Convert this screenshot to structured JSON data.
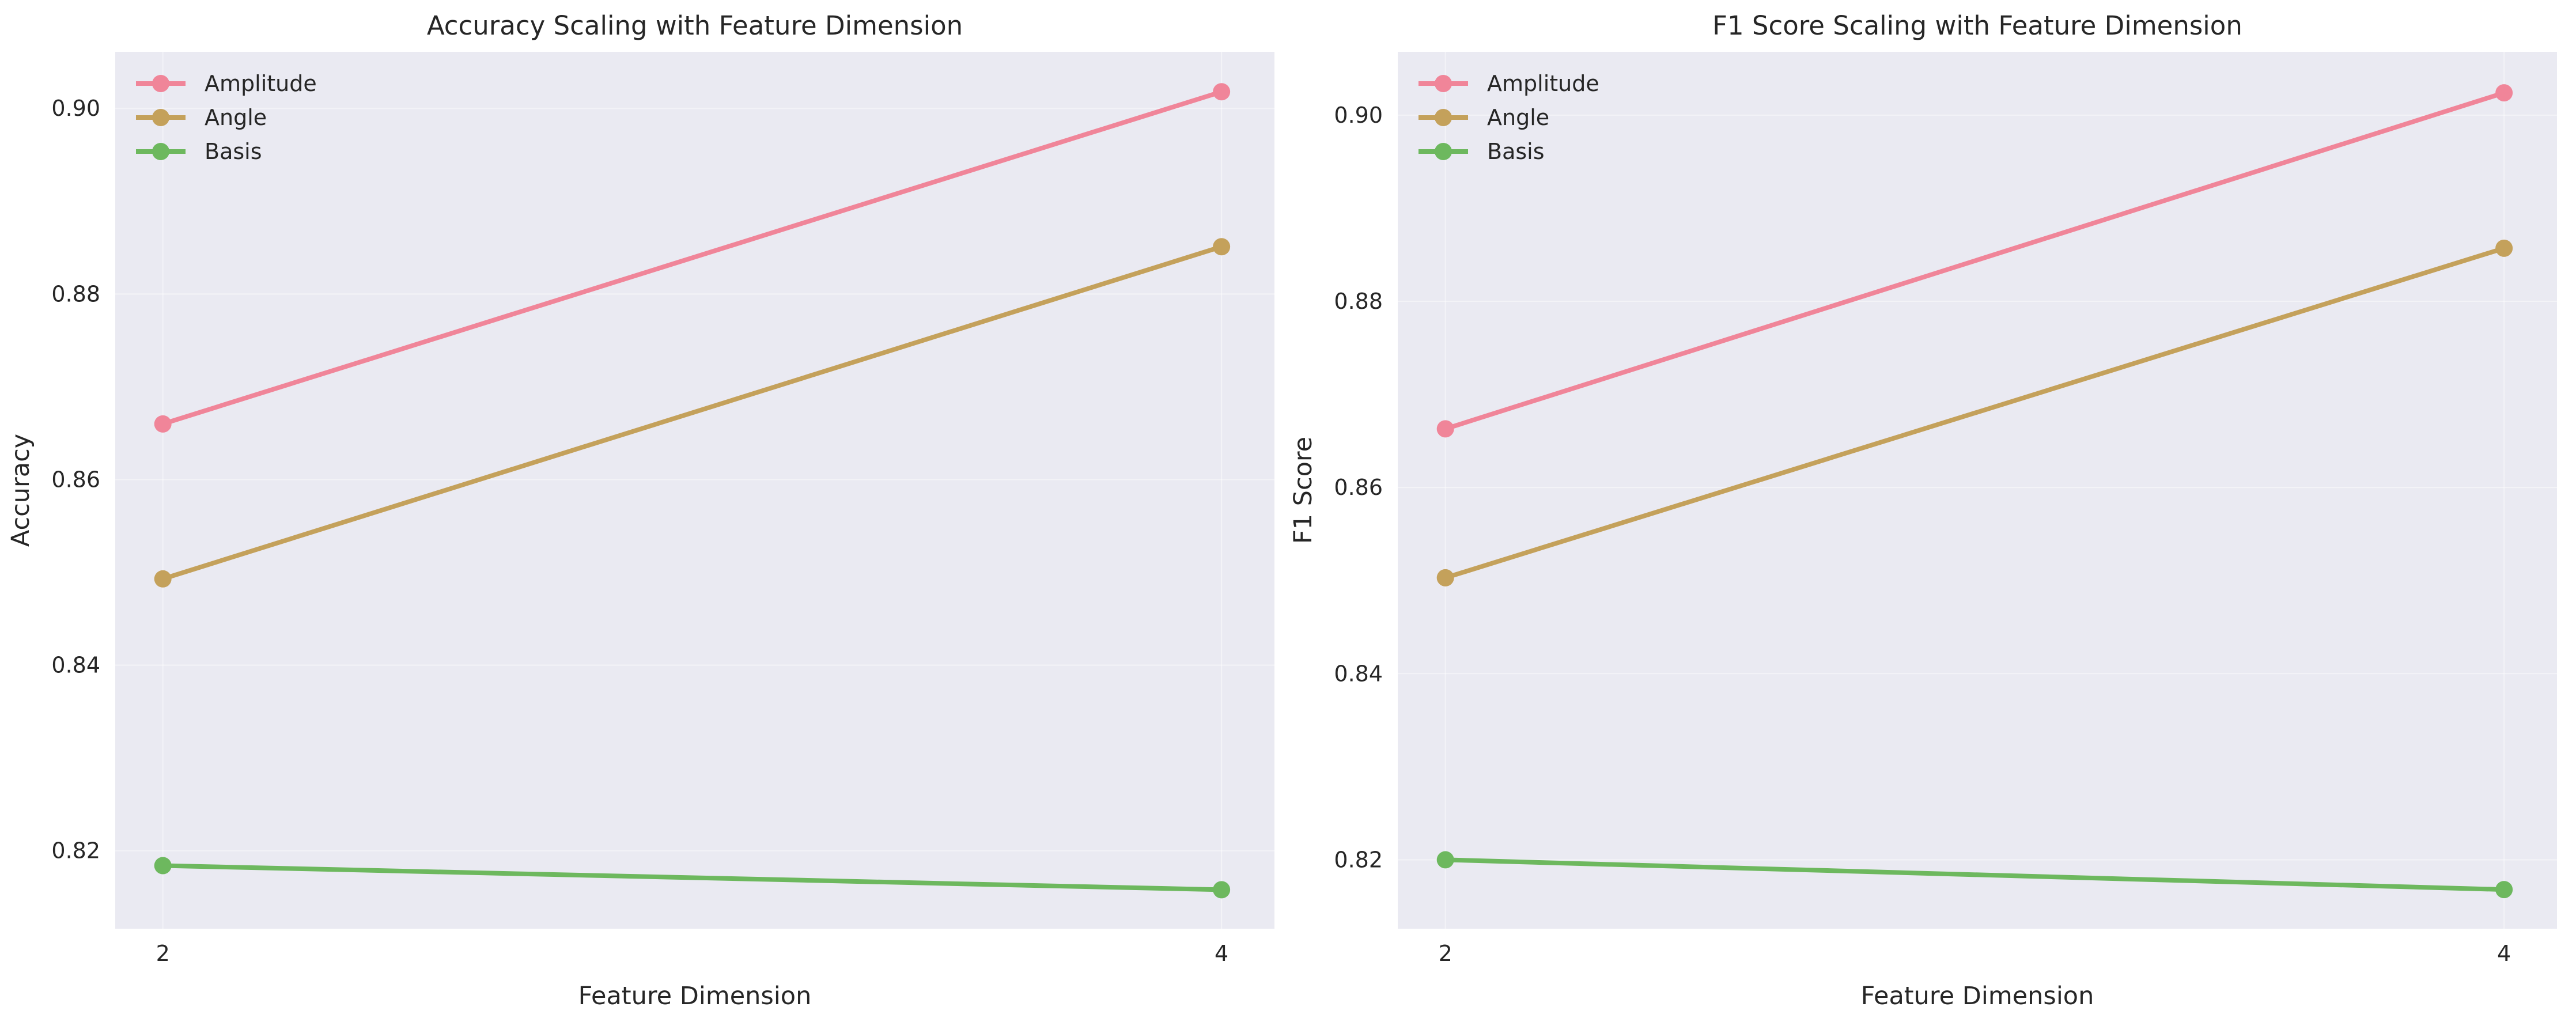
{
  "chart_data": [
    {
      "type": "line",
      "title": "Accuracy Scaling with Feature Dimension",
      "xlabel": "Feature Dimension",
      "ylabel": "Accuracy",
      "x": [
        2,
        4
      ],
      "xticks": [
        "2",
        "4"
      ],
      "xlim": [
        1.91,
        4.1
      ],
      "ylim": [
        0.8116,
        0.9061
      ],
      "yticks": [
        "0.82",
        "0.84",
        "0.86",
        "0.88",
        "0.90"
      ],
      "grid": true,
      "legend": "top-left",
      "series": [
        {
          "name": "Amplitude",
          "color": "#f08599",
          "values": [
            0.866,
            0.9018
          ]
        },
        {
          "name": "Angle",
          "color": "#c4a15b",
          "values": [
            0.8493,
            0.8851
          ]
        },
        {
          "name": "Basis",
          "color": "#6db85e",
          "values": [
            0.8184,
            0.8158
          ]
        }
      ]
    },
    {
      "type": "line",
      "title": "F1 Score Scaling with Feature Dimension",
      "xlabel": "Feature Dimension",
      "ylabel": "F1 Score",
      "x": [
        2,
        4
      ],
      "xticks": [
        "2",
        "4"
      ],
      "xlim": [
        1.91,
        4.1
      ],
      "ylim": [
        0.8126,
        0.9068
      ],
      "yticks": [
        "0.82",
        "0.84",
        "0.86",
        "0.88",
        "0.90"
      ],
      "grid": true,
      "legend": "top-left",
      "series": [
        {
          "name": "Amplitude",
          "color": "#f08599",
          "values": [
            0.8663,
            0.9024
          ]
        },
        {
          "name": "Angle",
          "color": "#c4a15b",
          "values": [
            0.8503,
            0.8857
          ]
        },
        {
          "name": "Basis",
          "color": "#6db85e",
          "values": [
            0.82,
            0.8168
          ]
        }
      ]
    }
  ]
}
